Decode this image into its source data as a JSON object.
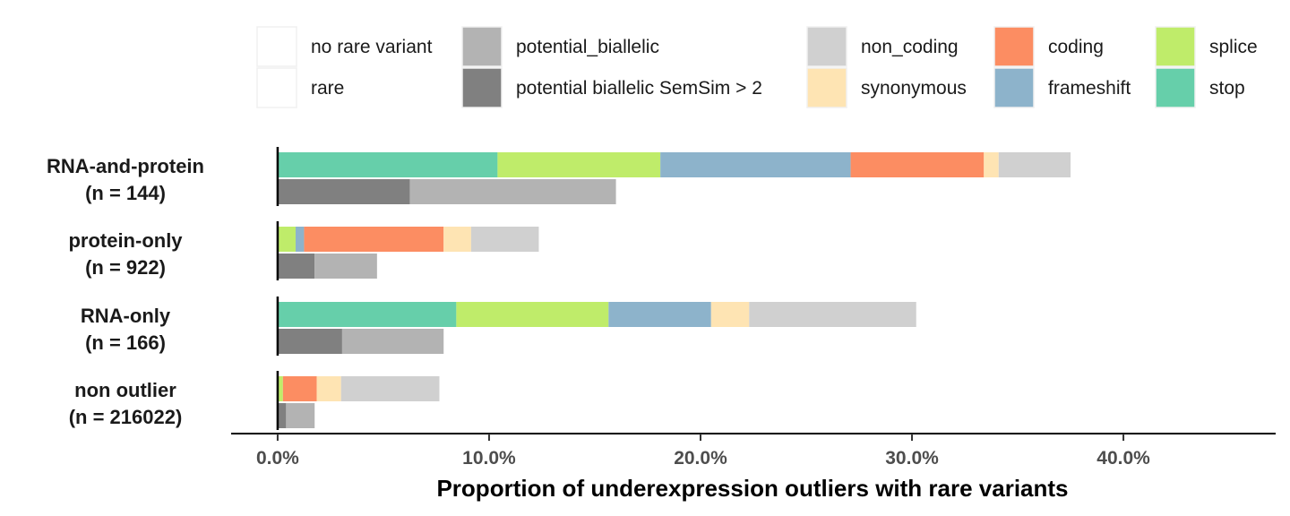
{
  "chart_data": {
    "type": "bar",
    "orientation": "horizontal",
    "stacked": true,
    "xlabel": "Proportion of underexpression outliers with rare variants",
    "xlim": [
      -0.022,
      0.472
    ],
    "xticks": [
      0,
      0.1,
      0.2,
      0.3,
      0.4
    ],
    "xtick_labels": [
      "0.0%",
      "10.0%",
      "20.0%",
      "30.0%",
      "40.0%"
    ],
    "grid": false,
    "legend_position": "top",
    "legend": [
      {
        "key": "no_rare_variant",
        "label": "no rare variant",
        "color": "#ffffff"
      },
      {
        "key": "rare",
        "label": "rare",
        "color": "#ffffff"
      },
      {
        "key": "potential_biallelic",
        "label": "potential_biallelic",
        "color": "#b3b3b3"
      },
      {
        "key": "potential_biallelic_semsim",
        "label": "potential biallelic SemSim > 2",
        "color": "#808080"
      },
      {
        "key": "non_coding",
        "label": "non_coding",
        "color": "#d0d0d0"
      },
      {
        "key": "synonymous",
        "label": "synonymous",
        "color": "#fee4b3"
      },
      {
        "key": "coding",
        "label": "coding",
        "color": "#fc8d62"
      },
      {
        "key": "frameshift",
        "label": "frameshift",
        "color": "#8db3cb"
      },
      {
        "key": "splice",
        "label": "splice",
        "color": "#bfec6a"
      },
      {
        "key": "stop",
        "label": "stop",
        "color": "#66cfaa"
      }
    ],
    "categories": [
      {
        "name": "RNA-and-protein",
        "n_label": "(n = 144)",
        "rare": {
          "stop": 0.104,
          "splice": 0.077,
          "frameshift": 0.09,
          "coding": 0.063,
          "synonymous": 0.007,
          "non_coding": 0.034
        },
        "biallelic": {
          "potential_biallelic_semsim": 0.0625,
          "potential_biallelic": 0.0975
        }
      },
      {
        "name": "protein-only",
        "n_label": "(n = 922)",
        "rare": {
          "stop": 0.0,
          "splice": 0.0085,
          "frameshift": 0.004,
          "coding": 0.066,
          "synonymous": 0.013,
          "non_coding": 0.032
        },
        "biallelic": {
          "potential_biallelic_semsim": 0.0175,
          "potential_biallelic": 0.0295
        }
      },
      {
        "name": "RNA-only",
        "n_label": "(n = 166)",
        "rare": {
          "stop": 0.0845,
          "splice": 0.072,
          "frameshift": 0.0485,
          "coding": 0.0,
          "synonymous": 0.018,
          "non_coding": 0.079
        },
        "biallelic": {
          "potential_biallelic_semsim": 0.0305,
          "potential_biallelic": 0.048
        }
      },
      {
        "name": "non outlier",
        "n_label": "(n = 216022)",
        "rare": {
          "stop": 0.0,
          "splice": 0.0025,
          "frameshift": 0.0,
          "coding": 0.016,
          "synonymous": 0.0115,
          "non_coding": 0.0465
        },
        "biallelic": {
          "potential_biallelic_semsim": 0.004,
          "potential_biallelic": 0.0135
        }
      }
    ],
    "rare_stack_order": [
      "stop",
      "splice",
      "frameshift",
      "coding",
      "synonymous",
      "non_coding"
    ],
    "biallelic_stack_order": [
      "potential_biallelic_semsim",
      "potential_biallelic"
    ]
  }
}
